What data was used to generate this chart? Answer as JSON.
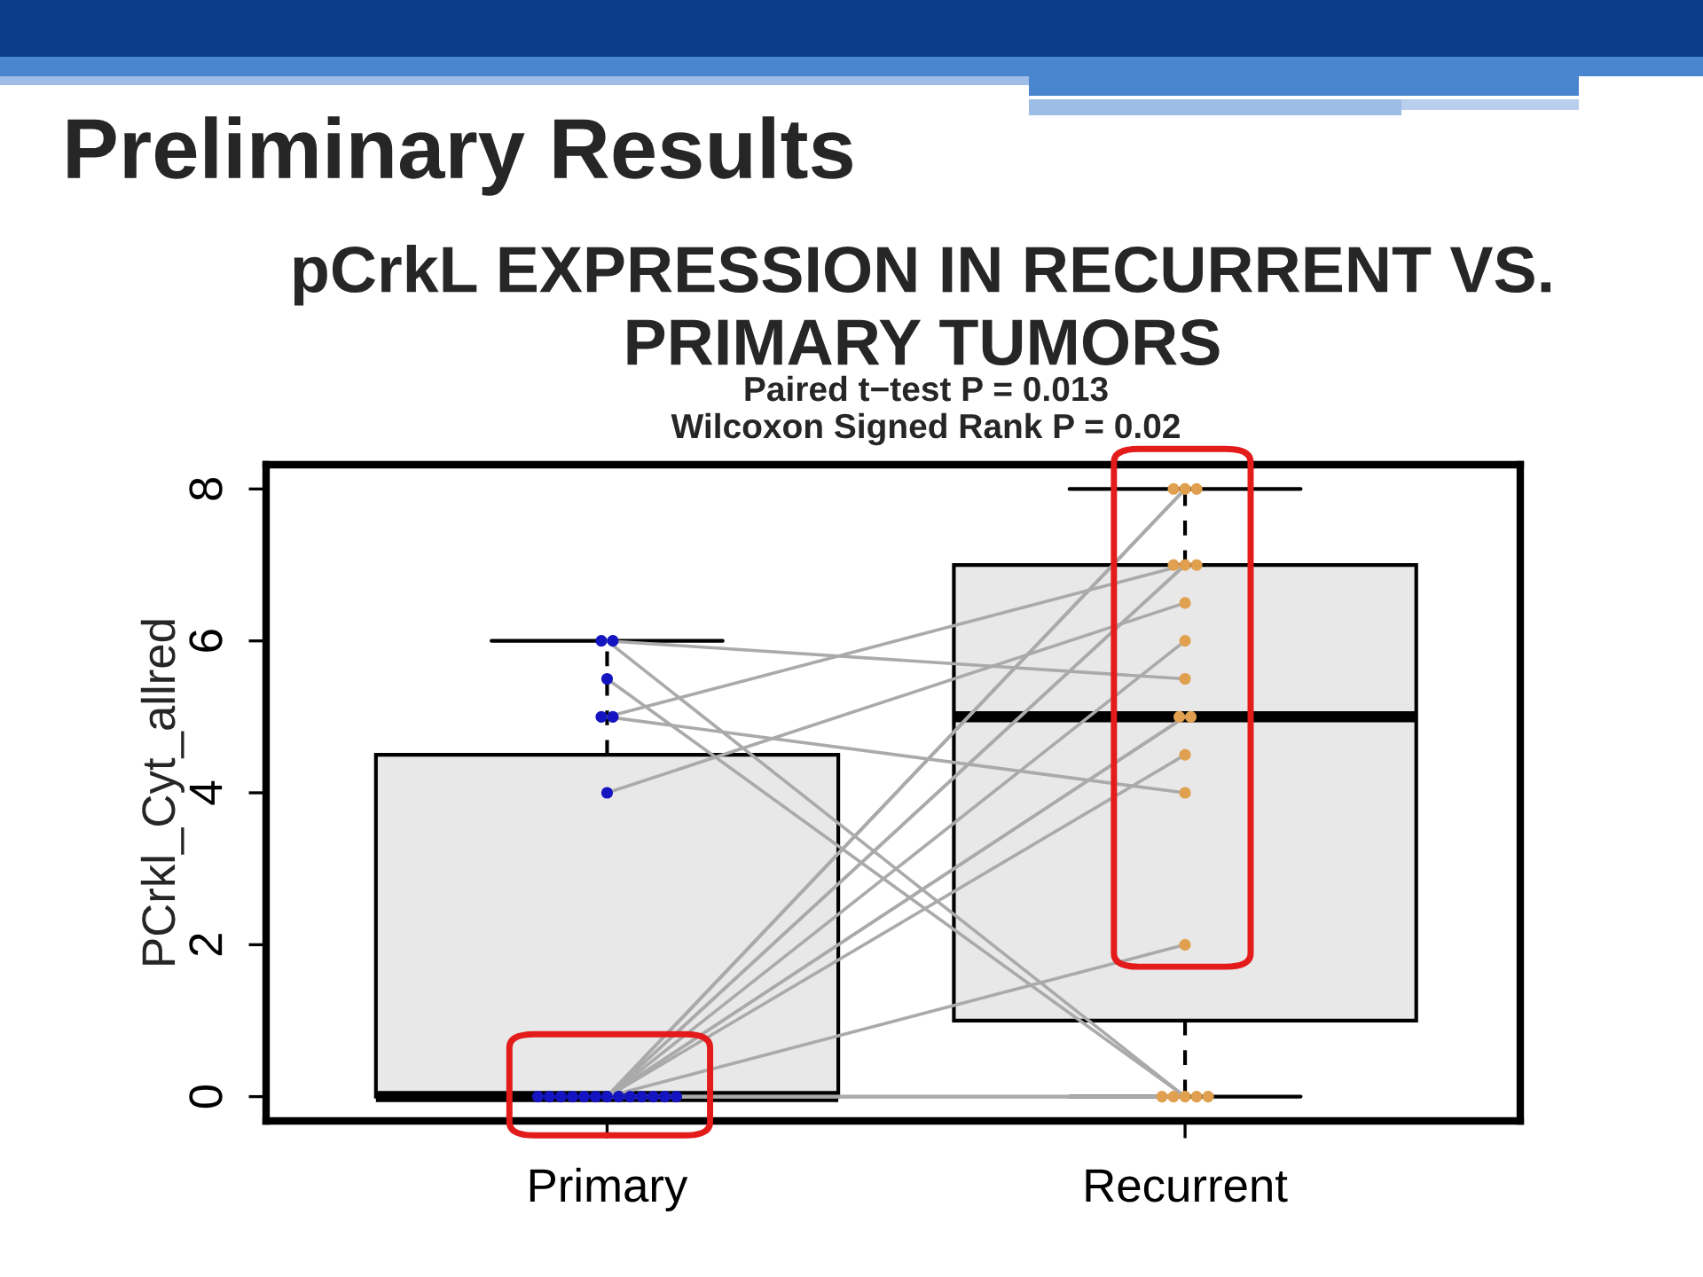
{
  "chart_data": {
    "type": "box",
    "title": "Preliminary Results",
    "subtitle": "pCrkL EXPRESSION IN RECURRENT VS. PRIMARY TUMORS",
    "annotations": [
      "Paired t−test P = 0.013",
      "Wilcoxon Signed Rank P = 0.02"
    ],
    "ylabel": "PCrkl_Cyt_allred",
    "categories": [
      "Primary",
      "Recurrent"
    ],
    "ylim": [
      -0.32,
      8.32
    ],
    "yticks": [
      0,
      2,
      4,
      6,
      8
    ],
    "series": [
      {
        "color": "#e8e8e8",
        "boxes": [
          {
            "low": 0,
            "q1": 0,
            "median": 0,
            "q3": 4.5,
            "high": 6
          },
          {
            "low": 0,
            "q1": 1,
            "median": 5,
            "q3": 7,
            "high": 8
          }
        ]
      },
      {
        "type": "line",
        "color": "#aaaaaa",
        "values": [
          6,
          0
        ]
      },
      {
        "type": "line",
        "color": "#aaaaaa",
        "values": [
          6,
          5.5
        ]
      },
      {
        "type": "line",
        "color": "#aaaaaa",
        "values": [
          5.5,
          0
        ]
      },
      {
        "type": "line",
        "color": "#aaaaaa",
        "values": [
          5,
          4
        ]
      },
      {
        "type": "line",
        "color": "#aaaaaa",
        "values": [
          5,
          7
        ]
      },
      {
        "type": "line",
        "color": "#aaaaaa",
        "values": [
          4,
          6.5
        ]
      },
      {
        "type": "line",
        "color": "#aaaaaa",
        "values": [
          0,
          8
        ]
      },
      {
        "type": "line",
        "color": "#aaaaaa",
        "values": [
          0,
          8
        ]
      },
      {
        "type": "line",
        "color": "#aaaaaa",
        "values": [
          0,
          8
        ]
      },
      {
        "type": "line",
        "color": "#aaaaaa",
        "values": [
          0,
          7
        ]
      },
      {
        "type": "line",
        "color": "#aaaaaa",
        "values": [
          0,
          7
        ]
      },
      {
        "type": "line",
        "color": "#aaaaaa",
        "values": [
          0,
          6
        ]
      },
      {
        "type": "line",
        "color": "#aaaaaa",
        "values": [
          0,
          5
        ]
      },
      {
        "type": "line",
        "color": "#aaaaaa",
        "values": [
          0,
          5
        ]
      },
      {
        "type": "line",
        "color": "#aaaaaa",
        "values": [
          0,
          4.5
        ]
      },
      {
        "type": "line",
        "color": "#aaaaaa",
        "values": [
          0,
          2
        ]
      },
      {
        "type": "line",
        "color": "#aaaaaa",
        "values": [
          0,
          0
        ]
      },
      {
        "type": "line",
        "color": "#aaaaaa",
        "values": [
          0,
          0
        ]
      },
      {
        "type": "line",
        "color": "#aaaaaa",
        "values": [
          0,
          0
        ]
      },
      {
        "type": "scatter",
        "color": "#1414c0",
        "marker": "circle",
        "x": [
          "Primary",
          "Primary",
          "Primary",
          "Primary",
          "Primary",
          "Primary",
          "Primary",
          "Primary",
          "Primary",
          "Primary",
          "Primary",
          "Primary",
          "Primary",
          "Primary",
          "Primary",
          "Primary",
          "Primary",
          "Primary",
          "Primary"
        ],
        "values": [
          6,
          6,
          5.5,
          5,
          5,
          4,
          0,
          0,
          0,
          0,
          0,
          0,
          0,
          0,
          0,
          0,
          0,
          0,
          0
        ]
      },
      {
        "type": "scatter",
        "color": "#e0a050",
        "marker": "circle",
        "x": [
          "Recurrent",
          "Recurrent",
          "Recurrent",
          "Recurrent",
          "Recurrent",
          "Recurrent",
          "Recurrent",
          "Recurrent",
          "Recurrent",
          "Recurrent",
          "Recurrent",
          "Recurrent",
          "Recurrent",
          "Recurrent",
          "Recurrent",
          "Recurrent",
          "Recurrent",
          "Recurrent",
          "Recurrent"
        ],
        "values": [
          0,
          5.5,
          0,
          4,
          7,
          6.5,
          8,
          8,
          8,
          7,
          7,
          6,
          5,
          5,
          4.5,
          2,
          0,
          0,
          0
        ]
      }
    ]
  }
}
